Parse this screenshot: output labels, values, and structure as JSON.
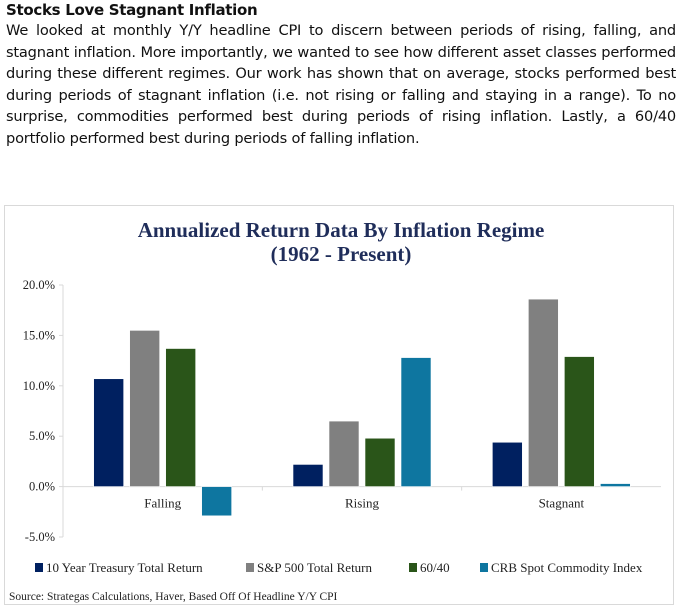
{
  "article": {
    "heading": "Stocks Love Stagnant Inflation",
    "body": "We looked at monthly Y/Y headline CPI to discern between periods of rising, falling, and stagnant inflation. More importantly, we wanted to see how different asset classes performed during these different regimes. Our work has shown that on average, stocks performed best during periods of stagnant inflation (i.e. not rising or falling and staying in a range). To no surprise, commodities performed best during periods of rising inflation. Lastly, a 60/40 portfolio performed best during periods of falling inflation."
  },
  "chart_data": {
    "type": "bar",
    "title": "Annualized Return Data By Inflation Regime",
    "subtitle": "(1962 - Present)",
    "xlabel": "",
    "ylabel": "",
    "categories": [
      "Falling",
      "Rising",
      "Stagnant"
    ],
    "ylim": [
      -5,
      20
    ],
    "yticks": [
      20,
      15,
      10,
      5,
      0,
      -5
    ],
    "ytick_labels": [
      "20.0%",
      "15.0%",
      "10.0%",
      "5.0%",
      "0.0%",
      "-5.0%"
    ],
    "grid": false,
    "legend_position": "bottom",
    "series": [
      {
        "name": "10 Year Treasury Total Return",
        "color": "#002060",
        "values": [
          10.7,
          2.2,
          4.4
        ]
      },
      {
        "name": "S&P 500 Total Return",
        "color": "#808080",
        "values": [
          15.5,
          6.5,
          18.6
        ]
      },
      {
        "name": "60/40",
        "color": "#2a5519",
        "values": [
          13.7,
          4.8,
          12.9
        ]
      },
      {
        "name": "CRB Spot Commodity Index",
        "color": "#0e76a0",
        "values": [
          -2.9,
          12.8,
          0.3
        ]
      }
    ],
    "source": "Source: Strategas Calculations, Haver, Based Off Of Headline Y/Y CPI"
  },
  "colors": {
    "title": "#1f2d5a",
    "axis": "#d9d9d9",
    "text": "#222222"
  }
}
